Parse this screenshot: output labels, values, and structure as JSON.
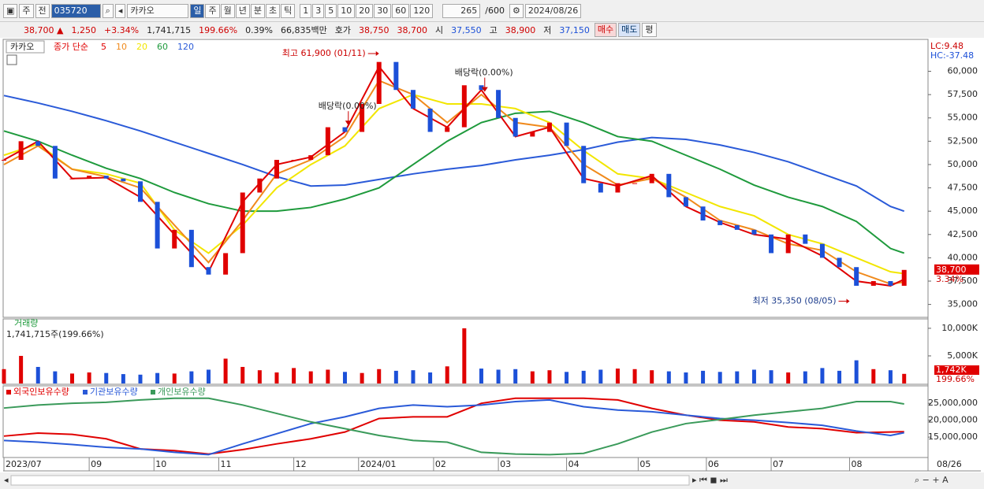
{
  "toolbar": {
    "market": "주",
    "prev": "전",
    "code": "035720",
    "name": "카카오",
    "periods": [
      "일",
      "주",
      "월",
      "년",
      "분",
      "초",
      "틱"
    ],
    "intervals": [
      "1",
      "3",
      "5",
      "10",
      "20",
      "30",
      "60",
      "120"
    ],
    "count": "265",
    "max": "/600",
    "date": "2024/08/26"
  },
  "quote": {
    "price": "38,700 ▲",
    "change": "1,250",
    "change_pct": "+3.34%",
    "volume": "1,741,715",
    "volume_ratio": "199.66%",
    "turnover": "0.39%",
    "amount": "66,835백만",
    "ask_label": "호가",
    "ask": "38,750",
    "bid": "38,700",
    "open_label": "시",
    "open": "37,550",
    "high_label": "고",
    "high": "38,900",
    "low_label": "저",
    "low": "37,150",
    "buy": "매수",
    "sell": "매도",
    "avg": "평"
  },
  "chart_data": [
    {
      "type": "candlestick",
      "title": "카카오",
      "legend_label": "종가 단순",
      "up_color": "#e00000",
      "down_color": "#1c50d8",
      "x": [
        0,
        5,
        10,
        15,
        20,
        25,
        30,
        35,
        40,
        45,
        50,
        55,
        60,
        65,
        70,
        75,
        80,
        85,
        90,
        95,
        100,
        105,
        110,
        115,
        120,
        125,
        130,
        135,
        140,
        145,
        150,
        155,
        160,
        165,
        170,
        175,
        180,
        185,
        190,
        195,
        200,
        205,
        210,
        215,
        220,
        225,
        230,
        235,
        240,
        245,
        250,
        255,
        260,
        264
      ],
      "values": [
        50500,
        52500,
        52000,
        48500,
        48500,
        48800,
        48500,
        48200,
        46000,
        41000,
        43000,
        39000,
        38200,
        40500,
        47000,
        48500,
        50500,
        50500,
        51000,
        54000,
        53500,
        56500,
        61000,
        58000,
        56000,
        53500,
        54000,
        58500,
        58000,
        55000,
        53000,
        53500,
        54500,
        52000,
        48000,
        47000,
        48000,
        48000,
        49000,
        46500,
        45500,
        44000,
        43500,
        43000,
        42500,
        40500,
        42500,
        41500,
        40000,
        39000,
        37000,
        37500,
        37000,
        38700
      ],
      "series": [
        {
          "name": "5",
          "color": "#e00000",
          "x": [
            0,
            10,
            20,
            30,
            40,
            50,
            60,
            70,
            80,
            90,
            100,
            110,
            120,
            130,
            140,
            150,
            160,
            170,
            180,
            190,
            200,
            210,
            220,
            230,
            240,
            250,
            260,
            264
          ],
          "values": [
            50500,
            52500,
            48500,
            48600,
            46500,
            42500,
            38500,
            46000,
            50000,
            50800,
            53500,
            60500,
            56000,
            54000,
            58000,
            53000,
            54000,
            48500,
            47700,
            48800,
            45500,
            43800,
            42500,
            42000,
            40200,
            37500,
            37000,
            37700
          ]
        },
        {
          "name": "10",
          "color": "#f08a1c",
          "x": [
            0,
            10,
            20,
            30,
            40,
            50,
            60,
            70,
            80,
            90,
            100,
            110,
            120,
            130,
            140,
            150,
            160,
            170,
            180,
            190,
            200,
            210,
            220,
            230,
            240,
            250,
            260,
            264
          ],
          "values": [
            50000,
            52000,
            49500,
            48700,
            47500,
            43500,
            39500,
            44000,
            49000,
            50500,
            53000,
            59000,
            57500,
            54500,
            57500,
            54500,
            54000,
            50000,
            47800,
            48500,
            46500,
            44000,
            43000,
            41500,
            40800,
            38500,
            37200,
            37400
          ]
        },
        {
          "name": "20",
          "color": "#f2e600",
          "x": [
            0,
            10,
            20,
            30,
            40,
            50,
            60,
            70,
            80,
            90,
            100,
            110,
            120,
            130,
            140,
            150,
            160,
            170,
            180,
            190,
            200,
            210,
            220,
            230,
            240,
            250,
            260,
            264
          ],
          "values": [
            51000,
            52200,
            49500,
            49000,
            48000,
            43000,
            40500,
            43500,
            47500,
            50000,
            52000,
            56000,
            57500,
            56500,
            56500,
            56000,
            54500,
            51500,
            49000,
            48500,
            47000,
            45500,
            44500,
            42500,
            41500,
            40000,
            38500,
            38300
          ]
        },
        {
          "name": "60",
          "color": "#1e9a3c",
          "x": [
            0,
            10,
            20,
            30,
            40,
            50,
            60,
            70,
            80,
            90,
            100,
            110,
            120,
            130,
            140,
            150,
            160,
            170,
            180,
            190,
            200,
            210,
            220,
            230,
            240,
            250,
            260,
            264
          ],
          "values": [
            53600,
            52500,
            51000,
            49600,
            48500,
            47000,
            45800,
            45000,
            45000,
            45400,
            46300,
            47500,
            50000,
            52500,
            54500,
            55500,
            55700,
            54500,
            53000,
            52500,
            51000,
            49500,
            47800,
            46500,
            45500,
            43900,
            41000,
            40500
          ]
        },
        {
          "name": "120",
          "color": "#2a5ad8",
          "x": [
            0,
            10,
            20,
            30,
            40,
            50,
            60,
            70,
            80,
            90,
            100,
            110,
            120,
            130,
            140,
            150,
            160,
            170,
            180,
            190,
            200,
            210,
            220,
            230,
            240,
            250,
            260,
            264
          ],
          "values": [
            57400,
            56600,
            55700,
            54700,
            53600,
            52400,
            51200,
            50000,
            48700,
            47700,
            47800,
            48400,
            49000,
            49500,
            49900,
            50500,
            51000,
            51600,
            52400,
            52900,
            52700,
            52100,
            51300,
            50300,
            49000,
            47700,
            45500,
            45000
          ]
        }
      ],
      "annotations": [
        {
          "text": "최고 61,900 (01/11)",
          "x": 110,
          "value": 61900,
          "arrow": "right"
        },
        {
          "text": "최저 35,350 (08/05)",
          "x": 248,
          "value": 35350,
          "arrow": "right"
        },
        {
          "text": "배당락(0.00%)",
          "x": 101,
          "value": 54200,
          "arrow": "down"
        },
        {
          "text": "배당락(0.00%)",
          "x": 141,
          "value": 57800,
          "arrow": "down"
        }
      ],
      "xlim": [
        0,
        271
      ],
      "ylim": [
        33700,
        63000
      ],
      "yticks": [
        {
          "value": 35000,
          "label": "35,000"
        },
        {
          "value": 37500,
          "label": "37,500"
        },
        {
          "value": 40000,
          "label": "40,000"
        },
        {
          "value": 42500,
          "label": "42,500"
        },
        {
          "value": 45000,
          "label": "45,000"
        },
        {
          "value": 47500,
          "label": "47,500"
        },
        {
          "value": 50000,
          "label": "50,000"
        },
        {
          "value": 52500,
          "label": "52,500"
        },
        {
          "value": 55000,
          "label": "55,000"
        },
        {
          "value": 57500,
          "label": "57,500"
        },
        {
          "value": 60000,
          "label": "60,000"
        }
      ],
      "xticks": [
        {
          "value": 0,
          "label": "2023/07"
        },
        {
          "value": 25,
          "label": "09"
        },
        {
          "value": 44,
          "label": "10"
        },
        {
          "value": 63,
          "label": "11"
        },
        {
          "value": 85,
          "label": "12"
        },
        {
          "value": 104,
          "label": "2024/01"
        },
        {
          "value": 126,
          "label": "02"
        },
        {
          "value": 145,
          "label": "03"
        },
        {
          "value": 165,
          "label": "04"
        },
        {
          "value": 186,
          "label": "05"
        },
        {
          "value": 206,
          "label": "06"
        },
        {
          "value": 225,
          "label": "07"
        },
        {
          "value": 248,
          "label": "08"
        }
      ],
      "last_date": "08/26",
      "lc": "LC:9.48",
      "hc": "HC:-37.48",
      "last_label": "38,700",
      "last_change": "3.34%"
    },
    {
      "type": "bar",
      "title": "거래량",
      "subtitle": "1,741,715주(199.66%)",
      "x": [
        0,
        5,
        10,
        15,
        20,
        25,
        30,
        35,
        40,
        45,
        50,
        55,
        60,
        65,
        70,
        75,
        80,
        85,
        90,
        95,
        100,
        105,
        110,
        115,
        120,
        125,
        130,
        135,
        140,
        145,
        150,
        155,
        160,
        165,
        170,
        175,
        180,
        185,
        190,
        195,
        200,
        205,
        210,
        215,
        220,
        225,
        230,
        235,
        240,
        245,
        250,
        255,
        260,
        264
      ],
      "values": [
        2600,
        5000,
        3000,
        2200,
        1800,
        2000,
        1900,
        1700,
        1600,
        1900,
        1800,
        2200,
        2500,
        4500,
        3000,
        2400,
        2000,
        2800,
        2200,
        2500,
        2100,
        1900,
        2600,
        2300,
        2400,
        2000,
        3100,
        10000,
        2700,
        2500,
        2600,
        2200,
        2400,
        2100,
        2300,
        2500,
        2700,
        2600,
        2400,
        2200,
        2000,
        2300,
        2100,
        2200,
        2500,
        2400,
        2000,
        2200,
        2800,
        2300,
        4200,
        2600,
        2400,
        1742
      ],
      "ylim": [
        0,
        11700
      ],
      "yticks": [
        {
          "value": 5000,
          "label": "5,000K"
        },
        {
          "value": 10000,
          "label": "10,000K"
        }
      ],
      "last_label": "1,742K",
      "last_ratio": "199.66%"
    },
    {
      "type": "line",
      "series": [
        {
          "name": "외국인보유수량",
          "color": "#e00000",
          "x": [
            0,
            10,
            20,
            30,
            40,
            50,
            60,
            70,
            80,
            90,
            100,
            110,
            120,
            130,
            140,
            150,
            160,
            170,
            180,
            190,
            200,
            210,
            220,
            230,
            240,
            250,
            260,
            264
          ],
          "values": [
            15300000,
            16200000,
            15800000,
            14500000,
            11500000,
            11000000,
            10000000,
            11300000,
            13000000,
            14500000,
            16500000,
            20500000,
            21000000,
            21000000,
            25000000,
            26500000,
            26500000,
            26500000,
            26000000,
            23500000,
            21500000,
            20000000,
            19500000,
            18000000,
            17500000,
            16300000,
            16500000,
            16600000
          ]
        },
        {
          "name": "기관보유수량",
          "color": "#2a5ad8",
          "x": [
            0,
            10,
            20,
            30,
            40,
            50,
            60,
            70,
            80,
            90,
            100,
            110,
            120,
            130,
            140,
            150,
            160,
            170,
            180,
            190,
            200,
            210,
            220,
            230,
            240,
            250,
            260,
            264
          ],
          "values": [
            14000000,
            13500000,
            12800000,
            12000000,
            11500000,
            10500000,
            9800000,
            13000000,
            16000000,
            19000000,
            21000000,
            23500000,
            24500000,
            24000000,
            24500000,
            25500000,
            26000000,
            24000000,
            23000000,
            22500000,
            21500000,
            20500000,
            20000000,
            19300000,
            18500000,
            16800000,
            15500000,
            16300000
          ]
        },
        {
          "name": "개인보유수량",
          "color": "#3a9a5a",
          "x": [
            0,
            10,
            20,
            30,
            40,
            50,
            60,
            70,
            80,
            90,
            100,
            110,
            120,
            130,
            140,
            150,
            160,
            170,
            180,
            190,
            200,
            210,
            220,
            230,
            240,
            250,
            260,
            264
          ],
          "values": [
            23600000,
            24500000,
            25000000,
            25300000,
            26000000,
            26500000,
            26500000,
            24500000,
            22000000,
            19500000,
            17500000,
            15500000,
            14000000,
            13500000,
            10500000,
            10000000,
            9800000,
            10200000,
            13000000,
            16500000,
            19000000,
            20200000,
            21500000,
            22500000,
            23500000,
            25500000,
            25500000,
            24800000
          ]
        }
      ],
      "ylim": [
        9200000,
        29700000
      ],
      "yticks": [
        {
          "value": 15000000,
          "label": "15,000,000"
        },
        {
          "value": 20000000,
          "label": "20,000,000"
        },
        {
          "value": 25000000,
          "label": "25,000,000"
        }
      ]
    }
  ]
}
